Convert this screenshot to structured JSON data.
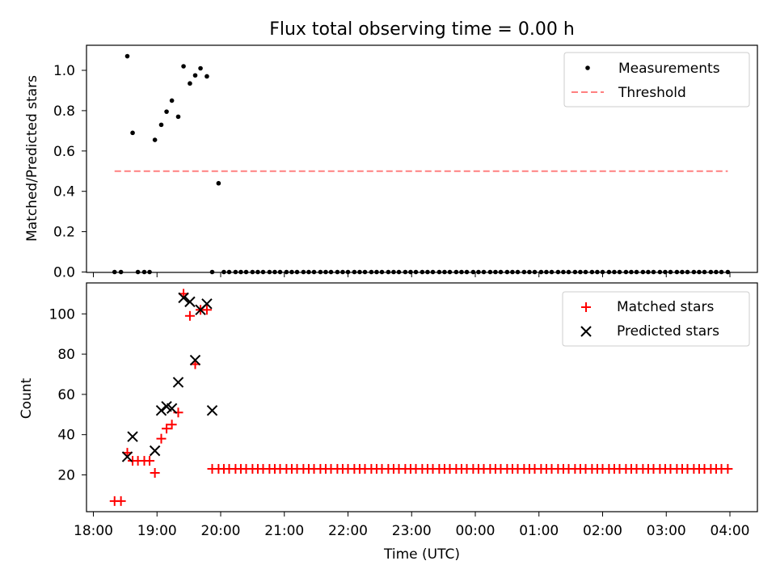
{
  "chart_data": [
    {
      "type": "scatter",
      "title": "Flux total observing time = 0.00 h",
      "ylabel": "Matched/Predicted stars",
      "xlabel": "",
      "ylim": [
        0,
        1.12
      ],
      "yticks": [
        "0.0",
        "0.2",
        "0.4",
        "0.6",
        "0.8",
        "1.0"
      ],
      "legend": "top-right",
      "series": [
        {
          "name": "Measurements",
          "color": "#000000",
          "marker": "dot",
          "x": [
            "18:20",
            "18:26",
            "18:32",
            "18:37",
            "18:42",
            "18:48",
            "18:53",
            "18:58",
            "19:04",
            "19:09",
            "19:14",
            "19:20",
            "19:25",
            "19:31",
            "19:36",
            "19:41",
            "19:47",
            "19:52",
            "19:58",
            "20:03",
            "20:08",
            "20:14",
            "20:19",
            "20:24",
            "20:30",
            "20:35",
            "20:40",
            "20:46",
            "20:51",
            "20:56",
            "21:02",
            "21:07",
            "21:12",
            "21:18",
            "21:23",
            "21:28",
            "21:34",
            "21:39",
            "21:44",
            "21:50",
            "21:55",
            "22:00",
            "22:06",
            "22:11",
            "22:16",
            "22:22",
            "22:27",
            "22:32",
            "22:38",
            "22:43",
            "22:48",
            "22:54",
            "22:59",
            "23:04",
            "23:10",
            "23:15",
            "23:20",
            "23:26",
            "23:31",
            "23:36",
            "23:42",
            "23:47",
            "23:52",
            "23:58",
            "00:03",
            "00:08",
            "00:14",
            "00:19",
            "00:24",
            "00:30",
            "00:35",
            "00:40",
            "00:46",
            "00:51",
            "00:56",
            "01:02",
            "01:07",
            "01:12",
            "01:18",
            "01:23",
            "01:28",
            "01:34",
            "01:39",
            "01:44",
            "01:50",
            "01:55",
            "02:00",
            "02:06",
            "02:11",
            "02:16",
            "02:22",
            "02:27",
            "02:32",
            "02:38",
            "02:43",
            "02:48",
            "02:54",
            "02:59",
            "03:04",
            "03:10",
            "03:15",
            "03:20",
            "03:26",
            "03:31",
            "03:36",
            "03:42",
            "03:47",
            "03:52",
            "03:58"
          ],
          "y": [
            0,
            0,
            1.07,
            0.69,
            0,
            0,
            0,
            0.655,
            0.73,
            0.795,
            0.85,
            0.77,
            1.02,
            0.935,
            0.975,
            1.01,
            0.97,
            0,
            0.44,
            0,
            0,
            0,
            0,
            0,
            0,
            0,
            0,
            0,
            0,
            0,
            0,
            0,
            0,
            0,
            0,
            0,
            0,
            0,
            0,
            0,
            0,
            0,
            0,
            0,
            0,
            0,
            0,
            0,
            0,
            0,
            0,
            0,
            0,
            0,
            0,
            0,
            0,
            0,
            0,
            0,
            0,
            0,
            0,
            0,
            0,
            0,
            0,
            0,
            0,
            0,
            0,
            0,
            0,
            0,
            0,
            0,
            0,
            0,
            0,
            0,
            0,
            0,
            0,
            0,
            0,
            0,
            0,
            0,
            0,
            0,
            0,
            0,
            0,
            0,
            0,
            0,
            0,
            0,
            0,
            0,
            0,
            0,
            0,
            0,
            0,
            0,
            0,
            0,
            0
          ]
        },
        {
          "name": "Threshold",
          "color": "#ff8080",
          "marker": "dashed-line",
          "x": [
            "18:20",
            "03:58"
          ],
          "y": [
            0.5,
            0.5
          ]
        }
      ]
    },
    {
      "type": "scatter",
      "title": "",
      "xlabel": "Time (UTC)",
      "ylabel": "Count",
      "ylim": [
        3,
        115
      ],
      "yticks": [
        "20",
        "40",
        "60",
        "80",
        "100"
      ],
      "xticks": [
        "18:00",
        "19:00",
        "20:00",
        "21:00",
        "22:00",
        "23:00",
        "00:00",
        "01:00",
        "02:00",
        "03:00",
        "04:00"
      ],
      "legend": "top-right",
      "series": [
        {
          "name": "Matched stars",
          "color": "#ff0000",
          "marker": "plus",
          "x": [
            "18:20",
            "18:26",
            "18:32",
            "18:37",
            "18:42",
            "18:48",
            "18:53",
            "18:58",
            "19:04",
            "19:09",
            "19:14",
            "19:20",
            "19:25",
            "19:31",
            "19:36",
            "19:41",
            "19:47",
            "19:52",
            "19:58",
            "20:03",
            "20:08",
            "20:14",
            "20:19",
            "20:24",
            "20:30",
            "20:35",
            "20:40",
            "20:46",
            "20:51",
            "20:56",
            "21:02",
            "21:07",
            "21:12",
            "21:18",
            "21:23",
            "21:28",
            "21:34",
            "21:39",
            "21:44",
            "21:50",
            "21:55",
            "22:00",
            "22:06",
            "22:11",
            "22:16",
            "22:22",
            "22:27",
            "22:32",
            "22:38",
            "22:43",
            "22:48",
            "22:54",
            "22:59",
            "23:04",
            "23:10",
            "23:15",
            "23:20",
            "23:26",
            "23:31",
            "23:36",
            "23:42",
            "23:47",
            "23:52",
            "23:58",
            "00:03",
            "00:08",
            "00:14",
            "00:19",
            "00:24",
            "00:30",
            "00:35",
            "00:40",
            "00:46",
            "00:51",
            "00:56",
            "01:02",
            "01:07",
            "01:12",
            "01:18",
            "01:23",
            "01:28",
            "01:34",
            "01:39",
            "01:44",
            "01:50",
            "01:55",
            "02:00",
            "02:06",
            "02:11",
            "02:16",
            "02:22",
            "02:27",
            "02:32",
            "02:38",
            "02:43",
            "02:48",
            "02:54",
            "02:59",
            "03:04",
            "03:10",
            "03:15",
            "03:20",
            "03:26",
            "03:31",
            "03:36",
            "03:42",
            "03:47",
            "03:52",
            "03:58"
          ],
          "y": [
            7,
            7,
            31,
            27,
            27,
            27,
            27,
            21,
            38,
            43,
            45,
            51,
            110,
            99,
            75,
            102,
            102,
            23,
            23,
            23,
            23,
            23,
            23,
            23,
            23,
            23,
            23,
            23,
            23,
            23,
            23,
            23,
            23,
            23,
            23,
            23,
            23,
            23,
            23,
            23,
            23,
            23,
            23,
            23,
            23,
            23,
            23,
            23,
            23,
            23,
            23,
            23,
            23,
            23,
            23,
            23,
            23,
            23,
            23,
            23,
            23,
            23,
            23,
            23,
            23,
            23,
            23,
            23,
            23,
            23,
            23,
            23,
            23,
            23,
            23,
            23,
            23,
            23,
            23,
            23,
            23,
            23,
            23,
            23,
            23,
            23,
            23,
            23,
            23,
            23,
            23,
            23,
            23,
            23,
            23,
            23,
            23,
            23,
            23,
            23,
            23,
            23,
            23,
            23,
            23,
            23,
            23,
            23,
            23
          ]
        },
        {
          "name": "Predicted stars",
          "color": "#000000",
          "marker": "x",
          "x": [
            "18:32",
            "18:37",
            "18:58",
            "19:04",
            "19:09",
            "19:14",
            "19:20",
            "19:25",
            "19:31",
            "19:36",
            "19:41",
            "19:47",
            "19:52"
          ],
          "y": [
            29,
            39,
            32,
            52,
            54,
            53,
            66,
            108,
            106,
            77,
            102,
            105,
            52
          ]
        }
      ]
    }
  ]
}
